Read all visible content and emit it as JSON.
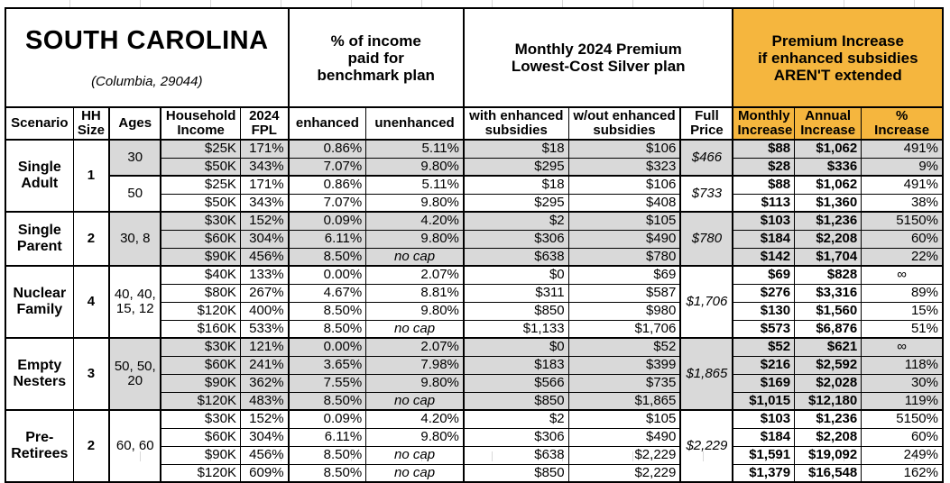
{
  "title": {
    "state": "SOUTH CAROLINA",
    "location": "(Columbia, 29044)"
  },
  "section_headers": {
    "benchmark": "% of income\npaid for\nbenchmark plan",
    "premium": "Monthly 2024 Premium\nLowest-Cost Silver plan",
    "increase": "Premium Increase\nif enhanced subsidies\nAREN'T extended"
  },
  "columns": {
    "scenario": "Scenario",
    "hh_size": "HH\nSize",
    "ages": "Ages",
    "income": "Household\nIncome",
    "fpl": "2024\nFPL",
    "enhanced": "enhanced",
    "unenhanced": "unenhanced",
    "with_sub": "with enhanced\nsubsidies",
    "without_sub": "w/out enhanced\nsubsidies",
    "full_price": "Full\nPrice",
    "monthly": "Monthly\nIncrease",
    "annual": "Annual\nIncrease",
    "pct": "%\nIncrease"
  },
  "colors": {
    "accent_orange": "#F5B63E",
    "row_shade_gray": "#D9D9D9"
  },
  "groups": [
    {
      "scenario": "Single\nAdult",
      "hh_size": "1",
      "age_blocks": [
        {
          "ages": "30",
          "shaded": true,
          "full_price": "$466",
          "rows": [
            {
              "income": "$25K",
              "fpl": "171%",
              "enhanced": "0.86%",
              "unenhanced": "5.11%",
              "with_sub": "$18",
              "without_sub": "$106",
              "monthly": "$88",
              "annual": "$1,062",
              "pct": "491%"
            },
            {
              "income": "$50K",
              "fpl": "343%",
              "enhanced": "7.07%",
              "unenhanced": "9.80%",
              "with_sub": "$295",
              "without_sub": "$323",
              "monthly": "$28",
              "annual": "$336",
              "pct": "9%"
            }
          ]
        },
        {
          "ages": "50",
          "shaded": false,
          "full_price": "$733",
          "rows": [
            {
              "income": "$25K",
              "fpl": "171%",
              "enhanced": "0.86%",
              "unenhanced": "5.11%",
              "with_sub": "$18",
              "without_sub": "$106",
              "monthly": "$88",
              "annual": "$1,062",
              "pct": "491%"
            },
            {
              "income": "$50K",
              "fpl": "343%",
              "enhanced": "7.07%",
              "unenhanced": "9.80%",
              "with_sub": "$295",
              "without_sub": "$408",
              "monthly": "$113",
              "annual": "$1,360",
              "pct": "38%"
            }
          ]
        }
      ]
    },
    {
      "scenario": "Single\nParent",
      "hh_size": "2",
      "age_blocks": [
        {
          "ages": "30, 8",
          "shaded": true,
          "full_price": "$780",
          "rows": [
            {
              "income": "$30K",
              "fpl": "152%",
              "enhanced": "0.09%",
              "unenhanced": "4.20%",
              "with_sub": "$2",
              "without_sub": "$105",
              "monthly": "$103",
              "annual": "$1,236",
              "pct": "5150%"
            },
            {
              "income": "$60K",
              "fpl": "304%",
              "enhanced": "6.11%",
              "unenhanced": "9.80%",
              "with_sub": "$306",
              "without_sub": "$490",
              "monthly": "$184",
              "annual": "$2,208",
              "pct": "60%"
            },
            {
              "income": "$90K",
              "fpl": "456%",
              "enhanced": "8.50%",
              "unenhanced": "no cap",
              "with_sub": "$638",
              "without_sub": "$780",
              "monthly": "$142",
              "annual": "$1,704",
              "pct": "22%"
            }
          ]
        }
      ]
    },
    {
      "scenario": "Nuclear\nFamily",
      "hh_size": "4",
      "age_blocks": [
        {
          "ages": "40, 40,\n15, 12",
          "shaded": false,
          "full_price": "$1,706",
          "rows": [
            {
              "income": "$40K",
              "fpl": "133%",
              "enhanced": "0.00%",
              "unenhanced": "2.07%",
              "with_sub": "$0",
              "without_sub": "$69",
              "monthly": "$69",
              "annual": "$828",
              "pct": "∞"
            },
            {
              "income": "$80K",
              "fpl": "267%",
              "enhanced": "4.67%",
              "unenhanced": "8.81%",
              "with_sub": "$311",
              "without_sub": "$587",
              "monthly": "$276",
              "annual": "$3,316",
              "pct": "89%"
            },
            {
              "income": "$120K",
              "fpl": "400%",
              "enhanced": "8.50%",
              "unenhanced": "9.80%",
              "with_sub": "$850",
              "without_sub": "$980",
              "monthly": "$130",
              "annual": "$1,560",
              "pct": "15%"
            },
            {
              "income": "$160K",
              "fpl": "533%",
              "enhanced": "8.50%",
              "unenhanced": "no cap",
              "with_sub": "$1,133",
              "without_sub": "$1,706",
              "monthly": "$573",
              "annual": "$6,876",
              "pct": "51%"
            }
          ]
        }
      ]
    },
    {
      "scenario": "Empty\nNesters",
      "hh_size": "3",
      "age_blocks": [
        {
          "ages": "50, 50,\n20",
          "shaded": true,
          "full_price": "$1,865",
          "rows": [
            {
              "income": "$30K",
              "fpl": "121%",
              "enhanced": "0.00%",
              "unenhanced": "2.07%",
              "with_sub": "$0",
              "without_sub": "$52",
              "monthly": "$52",
              "annual": "$621",
              "pct": "∞"
            },
            {
              "income": "$60K",
              "fpl": "241%",
              "enhanced": "3.65%",
              "unenhanced": "7.98%",
              "with_sub": "$183",
              "without_sub": "$399",
              "monthly": "$216",
              "annual": "$2,592",
              "pct": "118%"
            },
            {
              "income": "$90K",
              "fpl": "362%",
              "enhanced": "7.55%",
              "unenhanced": "9.80%",
              "with_sub": "$566",
              "without_sub": "$735",
              "monthly": "$169",
              "annual": "$2,028",
              "pct": "30%"
            },
            {
              "income": "$120K",
              "fpl": "483%",
              "enhanced": "8.50%",
              "unenhanced": "no cap",
              "with_sub": "$850",
              "without_sub": "$1,865",
              "monthly": "$1,015",
              "annual": "$12,180",
              "pct": "119%"
            }
          ]
        }
      ]
    },
    {
      "scenario": "Pre-\nRetirees",
      "hh_size": "2",
      "age_blocks": [
        {
          "ages": "60, 60",
          "shaded": false,
          "full_price": "$2,229",
          "rows": [
            {
              "income": "$30K",
              "fpl": "152%",
              "enhanced": "0.09%",
              "unenhanced": "4.20%",
              "with_sub": "$2",
              "without_sub": "$105",
              "monthly": "$103",
              "annual": "$1,236",
              "pct": "5150%"
            },
            {
              "income": "$60K",
              "fpl": "304%",
              "enhanced": "6.11%",
              "unenhanced": "9.80%",
              "with_sub": "$306",
              "without_sub": "$490",
              "monthly": "$184",
              "annual": "$2,208",
              "pct": "60%"
            },
            {
              "income": "$90K",
              "fpl": "456%",
              "enhanced": "8.50%",
              "unenhanced": "no cap",
              "with_sub": "$638",
              "without_sub": "$2,229",
              "monthly": "$1,591",
              "annual": "$19,092",
              "pct": "249%"
            },
            {
              "income": "$120K",
              "fpl": "609%",
              "enhanced": "8.50%",
              "unenhanced": "no cap",
              "with_sub": "$850",
              "without_sub": "$2,229",
              "monthly": "$1,379",
              "annual": "$16,548",
              "pct": "162%"
            }
          ]
        }
      ]
    }
  ]
}
